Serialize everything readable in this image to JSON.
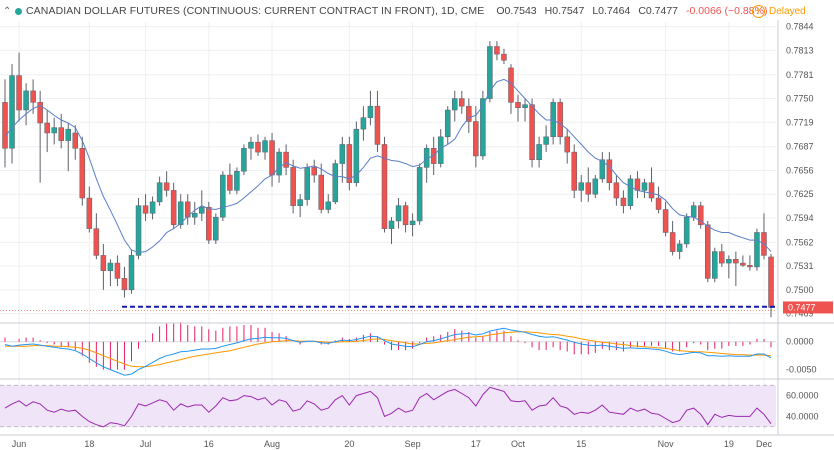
{
  "header": {
    "symbol": "CANADIAN DOLLAR FUTURES (CONTINUOUS: CURRENT CONTRACT IN FRONT), 1D, CME",
    "open": "O0.7543",
    "high": "H0.7547",
    "low": "L0.7464",
    "close": "C0.7477",
    "change": "-0.0066 (−0.88%)",
    "delayed": "Delayed",
    "delayed_icon": "clock-icon"
  },
  "colors": {
    "up": "#26a69a",
    "down": "#ef5350",
    "ma": "#5b7fc7",
    "macd": "#2196f3",
    "signal": "#ff9800",
    "hist": "#e91e63",
    "rsi": "#9c27b0",
    "rsi_band": "#f0e4f9",
    "support_line": "#1a1aa6"
  },
  "chart_data": [
    {
      "type": "candlestick",
      "title": "CANADIAN DOLLAR FUTURES (CONTINUOUS: CURRENT CONTRACT IN FRONT), 1D, CME",
      "ylim": [
        0.7458,
        0.785
      ],
      "yticks": [
        "0.7844",
        "0.7813",
        "0.7781",
        "0.7750",
        "0.7719",
        "0.7687",
        "0.7656",
        "0.7625",
        "0.7594",
        "0.7562",
        "0.7531",
        "0.7500",
        "0.7469"
      ],
      "last_price_label": "0.7477",
      "support_level": 0.7478,
      "x_labels": [
        "Jun",
        "18",
        "Jul",
        "16",
        "Aug",
        "20",
        "Sep",
        "17",
        "Oct",
        "15",
        "Nov",
        "19",
        "Dec"
      ],
      "moving_average_period": 10,
      "candles": [
        [
          0.7745,
          0.7775,
          0.766,
          0.7685
        ],
        [
          0.7685,
          0.7795,
          0.7665,
          0.778
        ],
        [
          0.778,
          0.781,
          0.772,
          0.7735
        ],
        [
          0.7735,
          0.777,
          0.7715,
          0.776
        ],
        [
          0.776,
          0.7775,
          0.773,
          0.7745
        ],
        [
          0.7745,
          0.776,
          0.764,
          0.7718
        ],
        [
          0.7718,
          0.7735,
          0.768,
          0.7705
        ],
        [
          0.7705,
          0.7725,
          0.769,
          0.7712
        ],
        [
          0.7712,
          0.773,
          0.7685,
          0.7695
        ],
        [
          0.7695,
          0.7718,
          0.7655,
          0.771
        ],
        [
          0.7705,
          0.7715,
          0.767,
          0.7685
        ],
        [
          0.7685,
          0.77,
          0.761,
          0.762
        ],
        [
          0.762,
          0.7635,
          0.7575,
          0.758
        ],
        [
          0.758,
          0.76,
          0.754,
          0.7545
        ],
        [
          0.7545,
          0.756,
          0.75,
          0.7525
        ],
        [
          0.7525,
          0.754,
          0.7505,
          0.7535
        ],
        [
          0.7535,
          0.7545,
          0.7505,
          0.7515
        ],
        [
          0.7515,
          0.753,
          0.749,
          0.75
        ],
        [
          0.75,
          0.7552,
          0.7495,
          0.7545
        ],
        [
          0.7545,
          0.762,
          0.754,
          0.761
        ],
        [
          0.761,
          0.7625,
          0.759,
          0.76
        ],
        [
          0.76,
          0.7622,
          0.7592,
          0.7615
        ],
        [
          0.7615,
          0.7648,
          0.761,
          0.764
        ],
        [
          0.764,
          0.7655,
          0.7622,
          0.763
        ],
        [
          0.763,
          0.764,
          0.758,
          0.7585
        ],
        [
          0.7585,
          0.7625,
          0.758,
          0.7615
        ],
        [
          0.7615,
          0.7625,
          0.7585,
          0.7595
        ],
        [
          0.7595,
          0.7615,
          0.7585,
          0.76
        ],
        [
          0.76,
          0.763,
          0.759,
          0.7608
        ],
        [
          0.7608,
          0.7615,
          0.756,
          0.7565
        ],
        [
          0.7565,
          0.76,
          0.756,
          0.7595
        ],
        [
          0.7595,
          0.7655,
          0.759,
          0.765
        ],
        [
          0.765,
          0.7665,
          0.7625,
          0.763
        ],
        [
          0.763,
          0.766,
          0.7625,
          0.7655
        ],
        [
          0.7655,
          0.769,
          0.765,
          0.7685
        ],
        [
          0.7685,
          0.77,
          0.767,
          0.7693
        ],
        [
          0.7693,
          0.7703,
          0.7675,
          0.768
        ],
        [
          0.768,
          0.77,
          0.767,
          0.7695
        ],
        [
          0.7695,
          0.7705,
          0.7635,
          0.765
        ],
        [
          0.765,
          0.7685,
          0.764,
          0.768
        ],
        [
          0.768,
          0.769,
          0.765,
          0.766
        ],
        [
          0.766,
          0.767,
          0.76,
          0.761
        ],
        [
          0.761,
          0.7625,
          0.7595,
          0.7618
        ],
        [
          0.7618,
          0.7665,
          0.761,
          0.766
        ],
        [
          0.766,
          0.767,
          0.764,
          0.765
        ],
        [
          0.765,
          0.7665,
          0.76,
          0.7605
        ],
        [
          0.7605,
          0.7625,
          0.76,
          0.7615
        ],
        [
          0.7615,
          0.767,
          0.7612,
          0.7665
        ],
        [
          0.7665,
          0.77,
          0.764,
          0.769
        ],
        [
          0.769,
          0.77,
          0.763,
          0.764
        ],
        [
          0.764,
          0.772,
          0.7635,
          0.771
        ],
        [
          0.771,
          0.774,
          0.7695,
          0.7725
        ],
        [
          0.7725,
          0.776,
          0.7715,
          0.774
        ],
        [
          0.774,
          0.776,
          0.768,
          0.769
        ],
        [
          0.769,
          0.77,
          0.7575,
          0.758
        ],
        [
          0.758,
          0.7595,
          0.756,
          0.759
        ],
        [
          0.759,
          0.762,
          0.758,
          0.761
        ],
        [
          0.761,
          0.7615,
          0.7575,
          0.7585
        ],
        [
          0.7585,
          0.76,
          0.757,
          0.759
        ],
        [
          0.759,
          0.7665,
          0.7585,
          0.766
        ],
        [
          0.766,
          0.769,
          0.764,
          0.7685
        ],
        [
          0.7685,
          0.77,
          0.765,
          0.7665
        ],
        [
          0.7665,
          0.771,
          0.766,
          0.77
        ],
        [
          0.77,
          0.774,
          0.769,
          0.7735
        ],
        [
          0.7735,
          0.776,
          0.772,
          0.775
        ],
        [
          0.775,
          0.776,
          0.773,
          0.774
        ],
        [
          0.774,
          0.775,
          0.7705,
          0.772
        ],
        [
          0.772,
          0.774,
          0.766,
          0.7675
        ],
        [
          0.7675,
          0.776,
          0.767,
          0.775
        ],
        [
          0.775,
          0.7825,
          0.7745,
          0.7818
        ],
        [
          0.7818,
          0.7825,
          0.78,
          0.7808
        ],
        [
          0.7808,
          0.7815,
          0.7795,
          0.78
        ],
        [
          0.779,
          0.7795,
          0.773,
          0.7745
        ],
        [
          0.7745,
          0.7755,
          0.772,
          0.7738
        ],
        [
          0.7738,
          0.775,
          0.772,
          0.7742
        ],
        [
          0.7742,
          0.775,
          0.766,
          0.767
        ],
        [
          0.767,
          0.77,
          0.766,
          0.769
        ],
        [
          0.769,
          0.7715,
          0.768,
          0.77
        ],
        [
          0.77,
          0.775,
          0.769,
          0.7745
        ],
        [
          0.7745,
          0.775,
          0.769,
          0.77
        ],
        [
          0.77,
          0.771,
          0.7665,
          0.768
        ],
        [
          0.768,
          0.769,
          0.762,
          0.763
        ],
        [
          0.763,
          0.765,
          0.7615,
          0.764
        ],
        [
          0.764,
          0.766,
          0.7615,
          0.7625
        ],
        [
          0.7625,
          0.765,
          0.762,
          0.7645
        ],
        [
          0.7645,
          0.768,
          0.764,
          0.767
        ],
        [
          0.767,
          0.768,
          0.763,
          0.764
        ],
        [
          0.764,
          0.765,
          0.761,
          0.762
        ],
        [
          0.762,
          0.763,
          0.76,
          0.761
        ],
        [
          0.761,
          0.765,
          0.7605,
          0.7645
        ],
        [
          0.7645,
          0.7655,
          0.762,
          0.763
        ],
        [
          0.763,
          0.7645,
          0.762,
          0.764
        ],
        [
          0.764,
          0.766,
          0.7615,
          0.762
        ],
        [
          0.762,
          0.7635,
          0.76,
          0.7605
        ],
        [
          0.7605,
          0.7615,
          0.757,
          0.7575
        ],
        [
          0.7575,
          0.759,
          0.7545,
          0.755
        ],
        [
          0.755,
          0.7565,
          0.754,
          0.756
        ],
        [
          0.756,
          0.76,
          0.7555,
          0.7595
        ],
        [
          0.7595,
          0.7615,
          0.759,
          0.761
        ],
        [
          0.761,
          0.7615,
          0.758,
          0.7585
        ],
        [
          0.7585,
          0.759,
          0.751,
          0.7515
        ],
        [
          0.7515,
          0.7555,
          0.751,
          0.755
        ],
        [
          0.755,
          0.756,
          0.753,
          0.7535
        ],
        [
          0.7535,
          0.7545,
          0.7515,
          0.754
        ],
        [
          0.754,
          0.755,
          0.7505,
          0.7535
        ],
        [
          0.7535,
          0.7545,
          0.753,
          0.7532
        ],
        [
          0.7532,
          0.7545,
          0.7525,
          0.753
        ],
        [
          0.753,
          0.758,
          0.7525,
          0.7575
        ],
        [
          0.7575,
          0.76,
          0.754,
          0.7545
        ],
        [
          0.7543,
          0.7547,
          0.7464,
          0.7477
        ]
      ],
      "moving_average": [
        0.77,
        0.7712,
        0.7722,
        0.773,
        0.7737,
        0.7741,
        0.7735,
        0.7728,
        0.7722,
        0.7718,
        0.7712,
        0.7695,
        0.7672,
        0.7645,
        0.7622,
        0.7604,
        0.7585,
        0.7565,
        0.7552,
        0.7549,
        0.755,
        0.7556,
        0.7564,
        0.7575,
        0.758,
        0.7587,
        0.7596,
        0.7604,
        0.761,
        0.7606,
        0.7605,
        0.7608,
        0.761,
        0.7613,
        0.762,
        0.7628,
        0.7636,
        0.7645,
        0.765,
        0.766,
        0.7666,
        0.7662,
        0.7659,
        0.766,
        0.7662,
        0.7658,
        0.7652,
        0.7648,
        0.7648,
        0.7645,
        0.765,
        0.766,
        0.7672,
        0.7675,
        0.7672,
        0.7669,
        0.7668,
        0.7665,
        0.7661,
        0.7663,
        0.7671,
        0.7676,
        0.7685,
        0.769,
        0.7697,
        0.7713,
        0.7725,
        0.7728,
        0.774,
        0.776,
        0.7772,
        0.7775,
        0.777,
        0.776,
        0.775,
        0.774,
        0.773,
        0.7722,
        0.7722,
        0.7717,
        0.771,
        0.77,
        0.769,
        0.768,
        0.7672,
        0.7668,
        0.7661,
        0.765,
        0.764,
        0.7635,
        0.763,
        0.7628,
        0.7626,
        0.7624,
        0.7617,
        0.7606,
        0.7598,
        0.7596,
        0.7595,
        0.759,
        0.7583,
        0.7578,
        0.7575,
        0.7575,
        0.7571,
        0.7568,
        0.7565,
        0.7565,
        0.756,
        0.755
      ]
    },
    {
      "type": "line",
      "title": "",
      "ylim": [
        -0.0065,
        0.003
      ],
      "yticks": [
        "0.0000",
        "-0.0050"
      ],
      "series": [
        {
          "values": [
            -0.0005,
            -0.0008,
            -0.0006,
            -0.0005,
            -0.0004,
            -0.0006,
            -0.0008,
            -0.001,
            -0.0012,
            -0.0013,
            -0.0016,
            -0.0022,
            -0.003,
            -0.0038,
            -0.0045,
            -0.005,
            -0.0055,
            -0.006,
            -0.0058,
            -0.005,
            -0.0044,
            -0.0037,
            -0.003,
            -0.0025,
            -0.0022,
            -0.0018,
            -0.0017,
            -0.0015,
            -0.0013,
            -0.0013,
            -0.0012,
            -0.0008,
            -0.0005,
            -0.0002,
            0.0002,
            0.0005,
            0.0006,
            0.0008,
            0.0007,
            0.0007,
            0.0006,
            0.0002,
            -0.0001,
            0.0001,
            0.0001,
            -0.0002,
            -0.0003,
            0.0,
            0.0003,
            0.0002,
            0.0004,
            0.0007,
            0.001,
            0.0009,
            0.0002,
            -0.0004,
            -0.0006,
            -0.0008,
            -0.0009,
            -0.0005,
            0.0,
            0.0002,
            0.0005,
            0.0009,
            0.0013,
            0.0014,
            0.0015,
            0.0012,
            0.0014,
            0.0019,
            0.0022,
            0.0024,
            0.0021,
            0.0019,
            0.0017,
            0.0013,
            0.001,
            0.0008,
            0.0009,
            0.0006,
            0.0003,
            -0.0001,
            -0.0004,
            -0.0006,
            -0.0007,
            -0.0006,
            -0.0008,
            -0.001,
            -0.0012,
            -0.0011,
            -0.0012,
            -0.0012,
            -0.0013,
            -0.0014,
            -0.0017,
            -0.0021,
            -0.0023,
            -0.0021,
            -0.0019,
            -0.002,
            -0.0025,
            -0.0025,
            -0.0026,
            -0.0025,
            -0.0026,
            -0.0026,
            -0.0026,
            -0.0022,
            -0.0022,
            -0.0029
          ]
        },
        {
          "values": [
            -0.0008,
            -0.0008,
            -0.0008,
            -0.0008,
            -0.0007,
            -0.0007,
            -0.0007,
            -0.0008,
            -0.0008,
            -0.0009,
            -0.001,
            -0.0012,
            -0.0015,
            -0.002,
            -0.0025,
            -0.003,
            -0.0035,
            -0.004,
            -0.0044,
            -0.0045,
            -0.0045,
            -0.0043,
            -0.0041,
            -0.0038,
            -0.0035,
            -0.0032,
            -0.0029,
            -0.0026,
            -0.0024,
            -0.0022,
            -0.002,
            -0.0018,
            -0.0016,
            -0.0013,
            -0.001,
            -0.0007,
            -0.0004,
            -0.0002,
            0.0,
            0.0001,
            0.0002,
            0.0002,
            0.0001,
            0.0001,
            0.0001,
            0.0,
            -0.0001,
            -0.0001,
            0.0,
            0.0,
            0.0001,
            0.0002,
            0.0004,
            0.0005,
            0.0004,
            0.0002,
            0.0,
            -0.0002,
            -0.0004,
            -0.0004,
            -0.0003,
            -0.0002,
            0.0,
            0.0002,
            0.0004,
            0.0006,
            0.0008,
            0.0009,
            0.001,
            0.0012,
            0.0014,
            0.0016,
            0.0017,
            0.0018,
            0.0018,
            0.0017,
            0.0016,
            0.0014,
            0.0013,
            0.0012,
            0.001,
            0.0008,
            0.0005,
            0.0003,
            0.0001,
            -0.0001,
            -0.0002,
            -0.0004,
            -0.0005,
            -0.0007,
            -0.0008,
            -0.0009,
            -0.001,
            -0.0011,
            -0.0012,
            -0.0014,
            -0.0016,
            -0.0017,
            -0.0018,
            -0.0018,
            -0.0019,
            -0.002,
            -0.0021,
            -0.0022,
            -0.0023,
            -0.0023,
            -0.0024,
            -0.0024,
            -0.0024,
            -0.0025
          ]
        }
      ]
    },
    {
      "type": "line",
      "title": "",
      "ylim": [
        25,
        75
      ],
      "yticks": [
        "60.0000",
        "40.0000"
      ],
      "bands": [
        30,
        70
      ],
      "series": [
        {
          "values": [
            48,
            52,
            55,
            50,
            54,
            52,
            46,
            44,
            47,
            45,
            46,
            40,
            35,
            32,
            30,
            34,
            33,
            31,
            40,
            52,
            50,
            53,
            56,
            54,
            46,
            52,
            49,
            51,
            51,
            44,
            50,
            58,
            55,
            56,
            60,
            59,
            56,
            58,
            51,
            56,
            54,
            45,
            47,
            55,
            52,
            46,
            48,
            56,
            60,
            51,
            60,
            62,
            64,
            58,
            40,
            43,
            48,
            44,
            46,
            58,
            62,
            56,
            60,
            64,
            66,
            62,
            58,
            50,
            61,
            68,
            66,
            64,
            55,
            54,
            55,
            46,
            50,
            51,
            58,
            50,
            48,
            42,
            44,
            43,
            46,
            51,
            44,
            43,
            42,
            48,
            45,
            47,
            43,
            42,
            38,
            34,
            36,
            46,
            48,
            42,
            32,
            42,
            39,
            41,
            40,
            40,
            40,
            48,
            42,
            33
          ]
        }
      ]
    }
  ]
}
